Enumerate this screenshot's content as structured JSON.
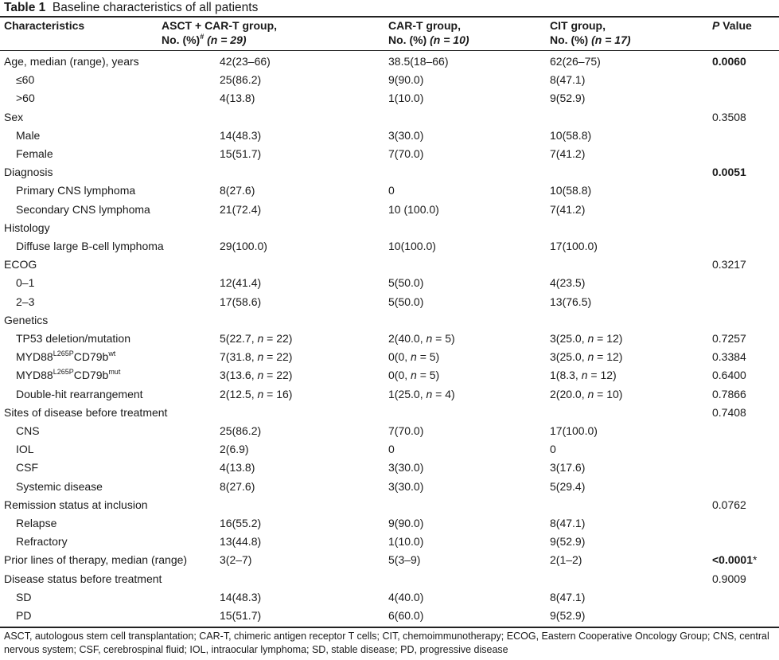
{
  "caption": {
    "label": "Table 1",
    "title": "Baseline characteristics of all patients"
  },
  "columns": {
    "characteristics": "Characteristics",
    "asct_line1": "ASCT + CAR-T group,",
    "asct_line2a": "No. (%)",
    "asct_mark": "#",
    "asct_n": "(n = 29)",
    "cart_line1": "CAR-T group,",
    "cart_line2a": "No. (%)",
    "cart_n": "(n = 10)",
    "cit_line1": "CIT group,",
    "cit_line2a": "No. (%)",
    "cit_n": "(n = 17)",
    "p_italic": "P",
    "p_rest": " Value"
  },
  "rows": [
    {
      "label": "Age, median (range), years",
      "asct": "42(23–66)",
      "cart": "38.5(18–66)",
      "cit": "62(26–75)",
      "p": "0.0060"
    },
    {
      "label": "≤60",
      "asct": "25(86.2)",
      "cart": "9(90.0)",
      "cit": "8(47.1)",
      "p": ""
    },
    {
      "label": ">60",
      "asct": "4(13.8)",
      "cart": "1(10.0)",
      "cit": "9(52.9)",
      "p": ""
    },
    {
      "label": "Sex",
      "asct": "",
      "cart": "",
      "cit": "",
      "p": "0.3508"
    },
    {
      "label": "Male",
      "asct": "14(48.3)",
      "cart": "3(30.0)",
      "cit": "10(58.8)",
      "p": ""
    },
    {
      "label": "Female",
      "asct": "15(51.7)",
      "cart": "7(70.0)",
      "cit": "7(41.2)",
      "p": ""
    },
    {
      "label": "Diagnosis",
      "asct": "",
      "cart": "",
      "cit": "",
      "p": "0.0051"
    },
    {
      "label": "Primary CNS lymphoma",
      "asct": "8(27.6)",
      "cart": "0",
      "cit": "10(58.8)",
      "p": ""
    },
    {
      "label": "Secondary CNS lymphoma",
      "asct": "21(72.4)",
      "cart": "10 (100.0)",
      "cit": "7(41.2)",
      "p": ""
    },
    {
      "label": "Histology",
      "asct": "",
      "cart": "",
      "cit": "",
      "p": ""
    },
    {
      "label": "Diffuse large B-cell lymphoma",
      "asct": "29(100.0)",
      "cart": "10(100.0)",
      "cit": "17(100.0)",
      "p": ""
    },
    {
      "label": "ECOG",
      "asct": "",
      "cart": "",
      "cit": "",
      "p": "0.3217"
    },
    {
      "label": "0–1",
      "asct": "12(41.4)",
      "cart": "5(50.0)",
      "cit": "4(23.5)",
      "p": ""
    },
    {
      "label": "2–3",
      "asct": "17(58.6)",
      "cart": "5(50.0)",
      "cit": "13(76.5)",
      "p": ""
    },
    {
      "label": "Genetics",
      "asct": "",
      "cart": "",
      "cit": "",
      "p": ""
    },
    {
      "label": "TP53 deletion/mutation",
      "asct": "5(22.7, n = 22)",
      "cart": "2(40.0, n = 5)",
      "cit": "3(25.0, n = 12)",
      "p": "0.7257"
    },
    {
      "label_a": "MYD88",
      "sup_a": "L265P",
      "label_b": "CD79b",
      "sup_b": "wt",
      "asct": "7(31.8, n = 22)",
      "cart": "0(0, n = 5)",
      "cit": "3(25.0, n = 12)",
      "p": "0.3384"
    },
    {
      "label_a": "MYD88",
      "sup_a": "L265P",
      "label_b": "CD79b",
      "sup_b": "mut",
      "asct": "3(13.6, n = 22)",
      "cart": "0(0, n = 5)",
      "cit": "1(8.3, n = 12)",
      "p": "0.6400"
    },
    {
      "label": "Double-hit rearrangement",
      "asct": "2(12.5, n = 16)",
      "cart": "1(25.0, n = 4)",
      "cit": "2(20.0, n = 10)",
      "p": "0.7866"
    },
    {
      "label": "Sites of disease before treatment",
      "asct": "",
      "cart": "",
      "cit": "",
      "p": "0.7408"
    },
    {
      "label": "CNS",
      "asct": "25(86.2)",
      "cart": "7(70.0)",
      "cit": "17(100.0)",
      "p": ""
    },
    {
      "label": "IOL",
      "asct": "2(6.9)",
      "cart": "0",
      "cit": "0",
      "p": ""
    },
    {
      "label": "CSF",
      "asct": "4(13.8)",
      "cart": "3(30.0)",
      "cit": "3(17.6)",
      "p": ""
    },
    {
      "label": "Systemic disease",
      "asct": "8(27.6)",
      "cart": "3(30.0)",
      "cit": "5(29.4)",
      "p": ""
    },
    {
      "label": "Remission status at inclusion",
      "asct": "",
      "cart": "",
      "cit": "",
      "p": "0.0762"
    },
    {
      "label": "Relapse",
      "asct": "16(55.2)",
      "cart": "9(90.0)",
      "cit": "8(47.1)",
      "p": ""
    },
    {
      "label": "Refractory",
      "asct": "13(44.8)",
      "cart": "1(10.0)",
      "cit": "9(52.9)",
      "p": ""
    },
    {
      "label": "Prior lines of therapy, median (range)",
      "asct": "3(2–7)",
      "cart": "5(3–9)",
      "cit": "2(1–2)",
      "p": "<0.0001",
      "p_mark": "*"
    },
    {
      "label": "Disease status before treatment",
      "asct": "",
      "cart": "",
      "cit": "",
      "p": "0.9009"
    },
    {
      "label": "SD",
      "asct": "14(48.3)",
      "cart": "4(40.0)",
      "cit": "8(47.1)",
      "p": ""
    },
    {
      "label": "PD",
      "asct": "15(51.7)",
      "cart": "6(60.0)",
      "cit": "9(52.9)",
      "p": ""
    }
  ],
  "footnote": "ASCT, autologous stem cell transplantation; CAR-T, chimeric antigen receptor T cells; CIT, chemoimmunotherapy; ECOG, Eastern Cooperative Oncology Group; CNS, central nervous system; CSF, cerebrospinal fluid; IOL, intraocular lymphoma; SD, stable disease; PD, progressive disease"
}
